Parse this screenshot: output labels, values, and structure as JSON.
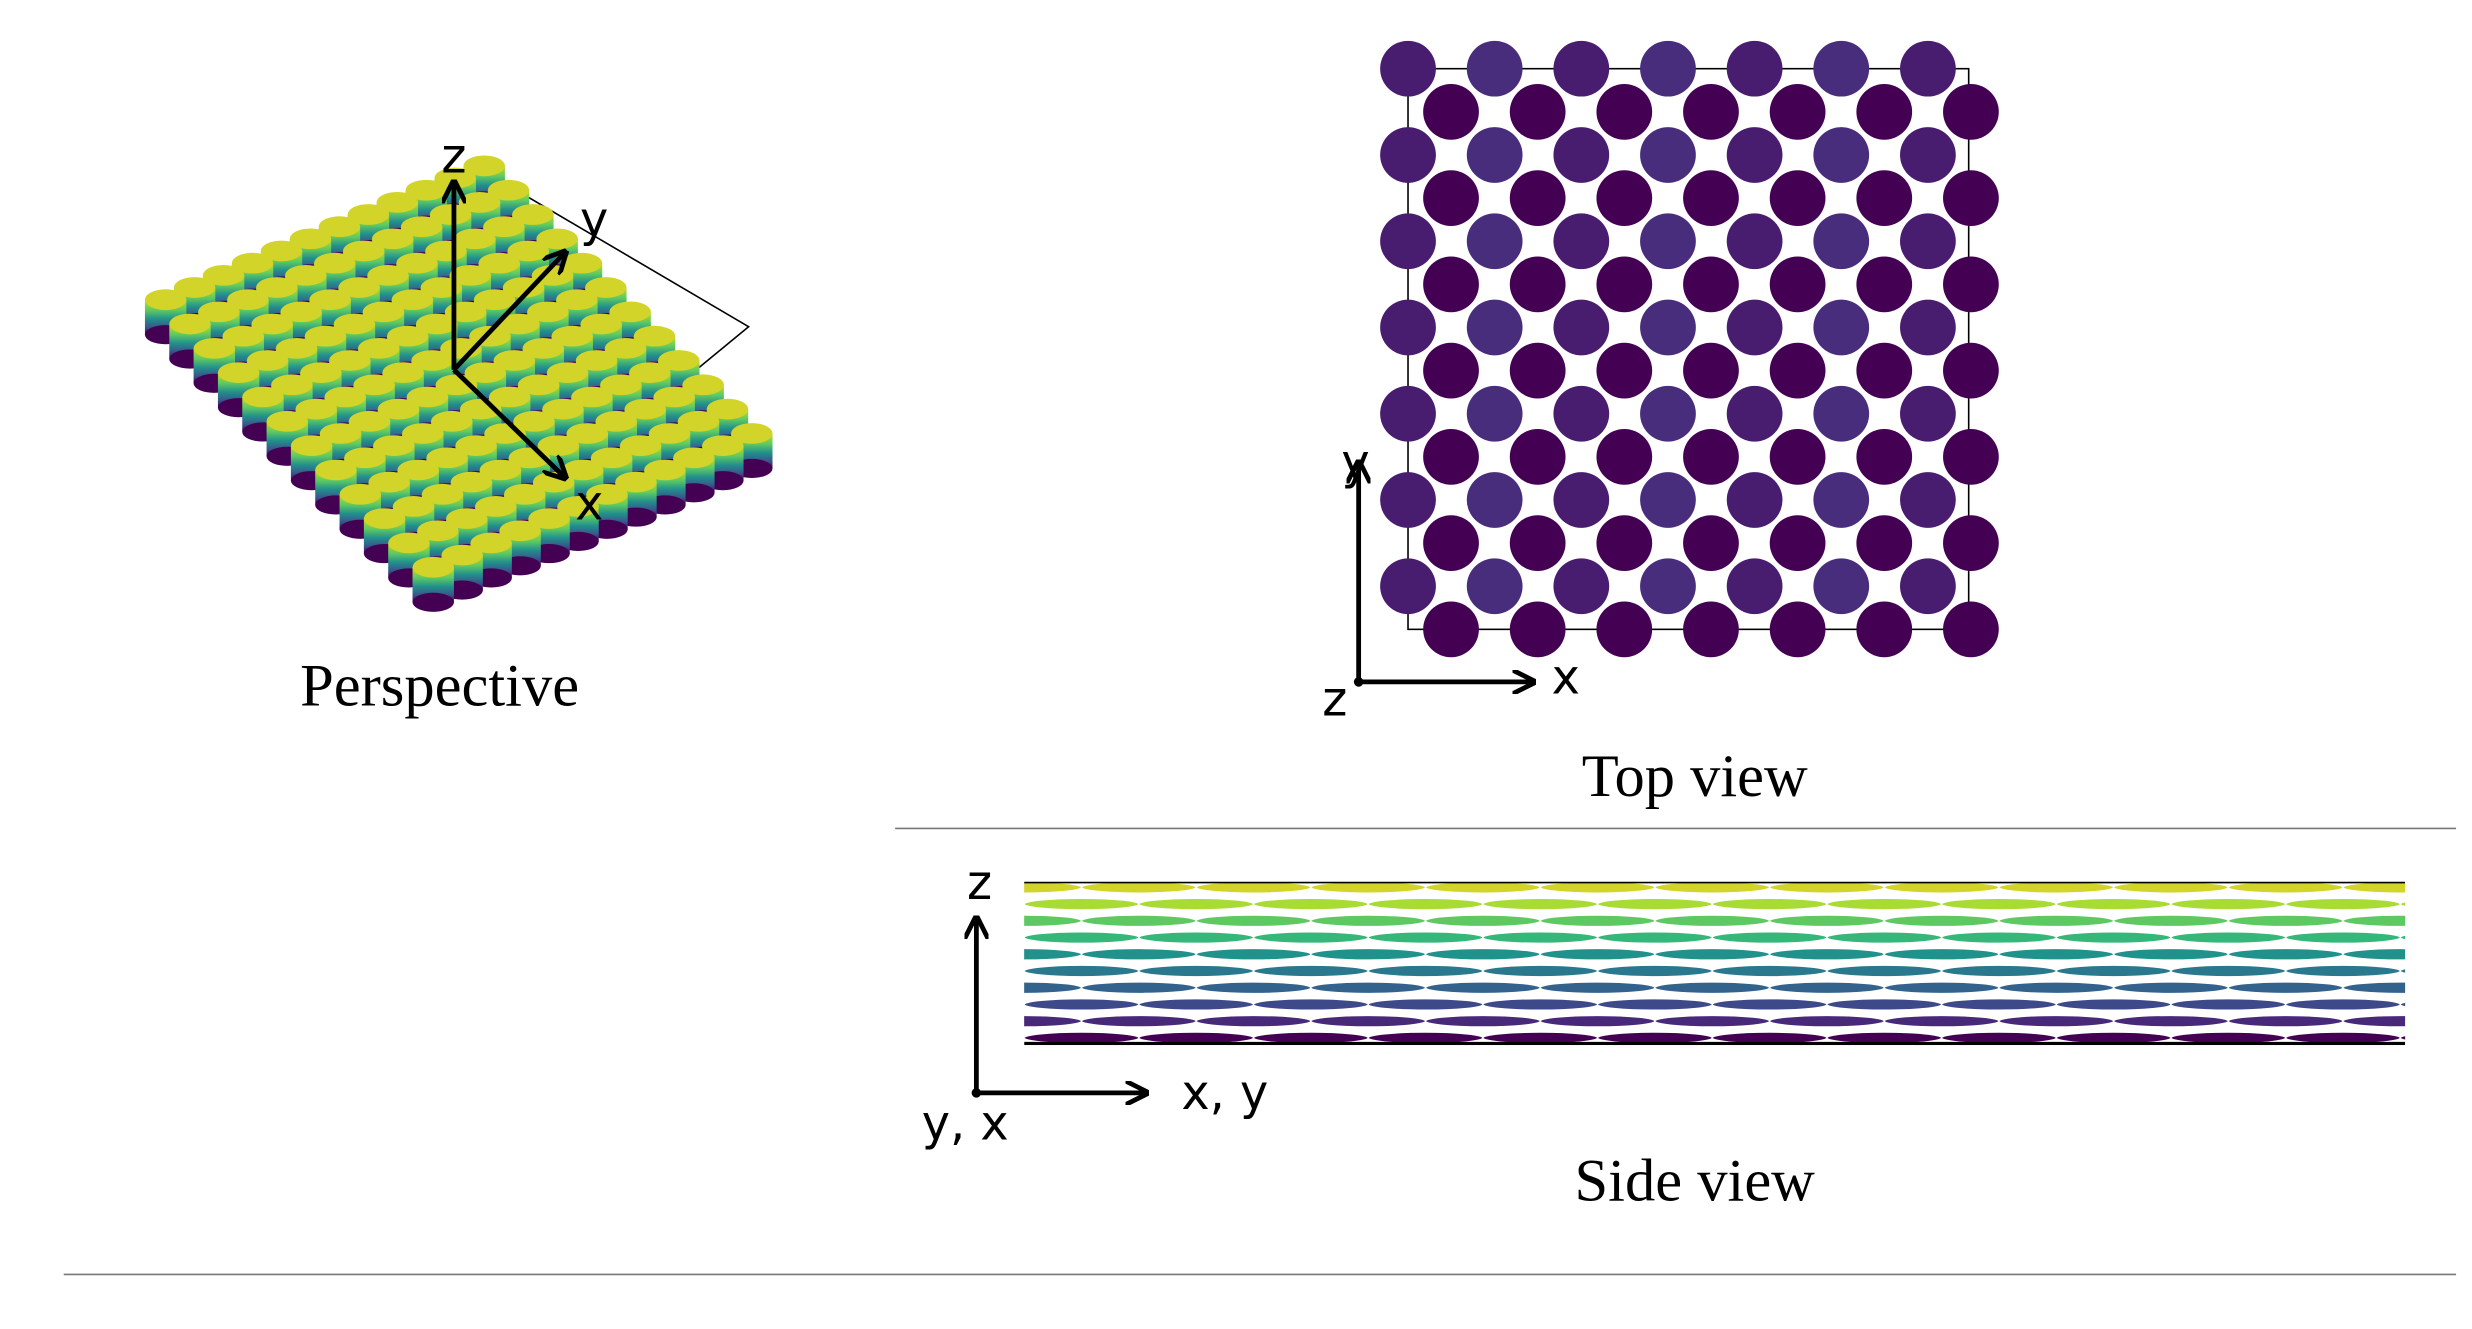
{
  "perspective": {
    "caption": "Perspective",
    "axes": {
      "x": "x",
      "y": "y",
      "z": "z"
    }
  },
  "top_view": {
    "caption": "Top view",
    "axes": {
      "x": "x",
      "y": "y",
      "z": "z"
    }
  },
  "side_view": {
    "caption": "Side view",
    "axes": {
      "vertical": "z",
      "horizontal": "x, y",
      "depth": "y, x"
    }
  }
}
